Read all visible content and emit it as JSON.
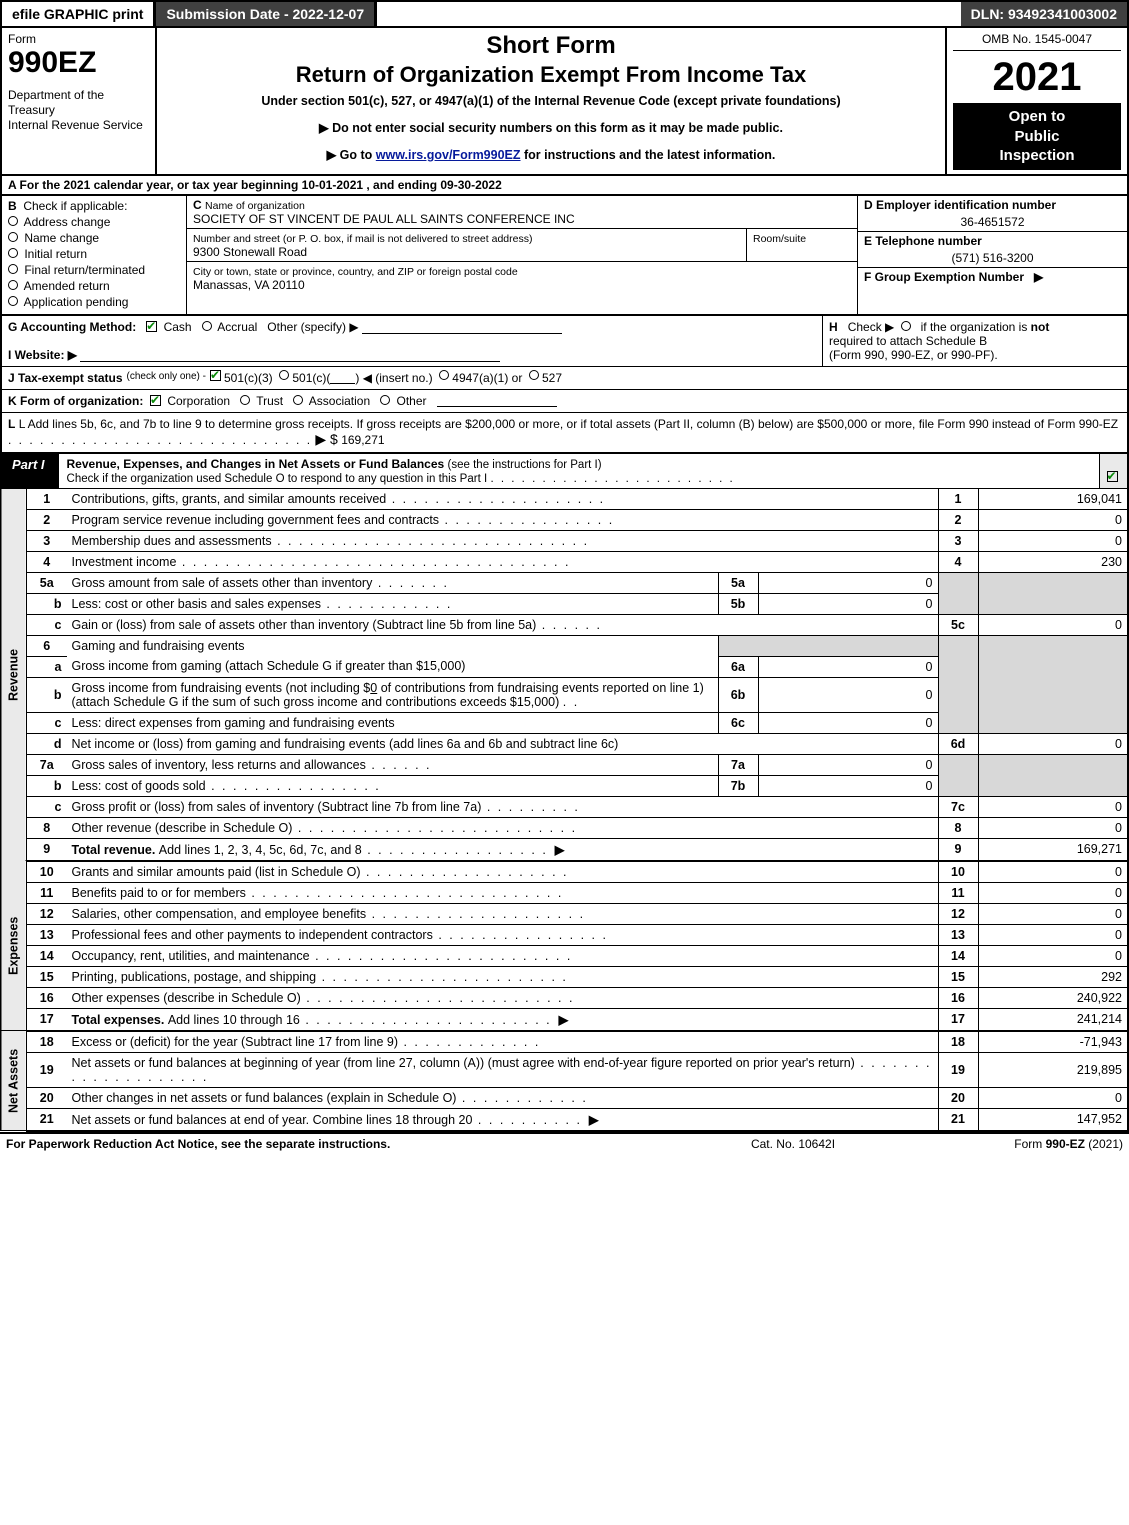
{
  "colors": {
    "dark_grey": "#404040",
    "light_grey": "#d8d8d8",
    "white": "#ffffff",
    "black": "#000000",
    "link": "#061a9b",
    "check_green": "#0a8a0a"
  },
  "top_bar": {
    "efile": "efile GRAPHIC print",
    "submission": "Submission Date - 2022-12-07",
    "dln": "DLN: 93492341003002"
  },
  "header": {
    "form_word": "Form",
    "form_no": "990EZ",
    "dept1": "Department of the Treasury",
    "dept2": "Internal Revenue Service",
    "short_form": "Short Form",
    "return_of": "Return of Organization Exempt From Income Tax",
    "under": "Under section 501(c), 527, or 4947(a)(1) of the Internal Revenue Code (except private foundations)",
    "no_ssn": "▶ Do not enter social security numbers on this form as it may be made public.",
    "goto_pre": "▶ Go to ",
    "goto_link": "www.irs.gov/Form990EZ",
    "goto_post": " for instructions and the latest information.",
    "omb": "OMB No. 1545-0047",
    "year": "2021",
    "inspect1": "Open to",
    "inspect2": "Public",
    "inspect3": "Inspection"
  },
  "row_a": "A  For the 2021 calendar year, or tax year beginning 10-01-2021 , and ending 09-30-2022",
  "section_b": {
    "heading": "B",
    "sub": "Check if applicable:",
    "items": [
      {
        "checked": false,
        "label": "Address change"
      },
      {
        "checked": false,
        "label": "Name change"
      },
      {
        "checked": false,
        "label": "Initial return"
      },
      {
        "checked": false,
        "label": "Final return/terminated"
      },
      {
        "checked": false,
        "label": "Amended return"
      },
      {
        "checked": false,
        "label": "Application pending"
      }
    ]
  },
  "section_c": {
    "c_label": "C",
    "name_label": "Name of organization",
    "name": "SOCIETY OF ST VINCENT DE PAUL ALL SAINTS CONFERENCE INC",
    "street_label": "Number and street (or P. O. box, if mail is not delivered to street address)",
    "street": "9300 Stonewall Road",
    "room_label": "Room/suite",
    "city_label": "City or town, state or province, country, and ZIP or foreign postal code",
    "city": "Manassas, VA  20110"
  },
  "section_d": {
    "label": "D Employer identification number",
    "value": "36-4651572"
  },
  "section_e": {
    "label": "E Telephone number",
    "value": "(571) 516-3200"
  },
  "section_f": {
    "label": "F Group Exemption Number",
    "arrow": "▶"
  },
  "row_g": {
    "label": "G Accounting Method:",
    "cash": "Cash",
    "accrual": "Accrual",
    "other": "Other (specify) ▶",
    "cash_checked": true
  },
  "row_h": {
    "text": "H   Check ▶      if the organization is not required to attach Schedule B (Form 990, 990-EZ, or 990-PF).",
    "h_lbl": "H",
    "check_arrow": "Check ▶",
    "if_not": "if the organization is ",
    "not_word": "not",
    "line2": "required to attach Schedule B",
    "line3": "(Form 990, 990-EZ, or 990-PF)."
  },
  "row_i": {
    "label": "I Website: ▶"
  },
  "row_j": {
    "label": "J Tax-exempt status",
    "sub": "(check only one) -",
    "opt1": "501(c)(3)",
    "opt2_pre": "501(c)(",
    "opt2_post": ") ◀ (insert no.)",
    "opt3": "4947(a)(1) or",
    "opt4": "527",
    "opt1_checked": true
  },
  "row_k": {
    "label": "K Form of organization:",
    "opts": [
      "Corporation",
      "Trust",
      "Association",
      "Other"
    ],
    "checked_idx": 0
  },
  "row_l": {
    "text": "L Add lines 5b, 6c, and 7b to line 9 to determine gross receipts. If gross receipts are $200,000 or more, or if total assets (Part II, column (B) below) are $500,000 or more, file Form 990 instead of Form 990-EZ",
    "arrow": "▶ $",
    "amount": "169,271"
  },
  "part1": {
    "tab": "Part I",
    "title": "Revenue, Expenses, and Changes in Net Assets or Fund Balances ",
    "title_sub": "(see the instructions for Part I)",
    "sub_line": "Check if the organization used Schedule O to respond to any question in this Part I",
    "schedO_checked": true
  },
  "rotated_labels": {
    "revenue": "Revenue",
    "expenses": "Expenses",
    "net_assets": "Net Assets"
  },
  "lines": {
    "l1": {
      "no": "1",
      "text": "Contributions, gifts, grants, and similar amounts received",
      "col": "1",
      "val": "169,041"
    },
    "l2": {
      "no": "2",
      "text": "Program service revenue including government fees and contracts",
      "col": "2",
      "val": "0"
    },
    "l3": {
      "no": "3",
      "text": "Membership dues and assessments",
      "col": "3",
      "val": "0"
    },
    "l4": {
      "no": "4",
      "text": "Investment income",
      "col": "4",
      "val": "230"
    },
    "l5a": {
      "no": "5a",
      "text": "Gross amount from sale of assets other than inventory",
      "subcol": "5a",
      "subval": "0"
    },
    "l5b": {
      "no": "b",
      "text": "Less: cost or other basis and sales expenses",
      "subcol": "5b",
      "subval": "0"
    },
    "l5c": {
      "no": "c",
      "text": "Gain or (loss) from sale of assets other than inventory (Subtract line 5b from line 5a)",
      "col": "5c",
      "val": "0"
    },
    "l6": {
      "no": "6",
      "text": "Gaming and fundraising events"
    },
    "l6a": {
      "no": "a",
      "text": "Gross income from gaming (attach Schedule G if greater than $15,000)",
      "subcol": "6a",
      "subval": "0"
    },
    "l6b": {
      "no": "b",
      "text_pre": "Gross income from fundraising events (not including $",
      "text_amt": "0",
      "text_mid": " of contributions from fundraising events reported on line 1) (attach Schedule G if the sum of such gross income and contributions exceeds $15,000)",
      "subcol": "6b",
      "subval": "0"
    },
    "l6c": {
      "no": "c",
      "text": "Less: direct expenses from gaming and fundraising events",
      "subcol": "6c",
      "subval": "0"
    },
    "l6d": {
      "no": "d",
      "text": "Net income or (loss) from gaming and fundraising events (add lines 6a and 6b and subtract line 6c)",
      "col": "6d",
      "val": "0"
    },
    "l7a": {
      "no": "7a",
      "text": "Gross sales of inventory, less returns and allowances",
      "subcol": "7a",
      "subval": "0"
    },
    "l7b": {
      "no": "b",
      "text": "Less: cost of goods sold",
      "subcol": "7b",
      "subval": "0"
    },
    "l7c": {
      "no": "c",
      "text": "Gross profit or (loss) from sales of inventory (Subtract line 7b from line 7a)",
      "col": "7c",
      "val": "0"
    },
    "l8": {
      "no": "8",
      "text": "Other revenue (describe in Schedule O)",
      "col": "8",
      "val": "0"
    },
    "l9": {
      "no": "9",
      "text": "Total revenue. ",
      "text2": "Add lines 1, 2, 3, 4, 5c, 6d, 7c, and 8",
      "col": "9",
      "val": "169,271"
    },
    "l10": {
      "no": "10",
      "text": "Grants and similar amounts paid (list in Schedule O)",
      "col": "10",
      "val": "0"
    },
    "l11": {
      "no": "11",
      "text": "Benefits paid to or for members",
      "col": "11",
      "val": "0"
    },
    "l12": {
      "no": "12",
      "text": "Salaries, other compensation, and employee benefits",
      "col": "12",
      "val": "0"
    },
    "l13": {
      "no": "13",
      "text": "Professional fees and other payments to independent contractors",
      "col": "13",
      "val": "0"
    },
    "l14": {
      "no": "14",
      "text": "Occupancy, rent, utilities, and maintenance",
      "col": "14",
      "val": "0"
    },
    "l15": {
      "no": "15",
      "text": "Printing, publications, postage, and shipping",
      "col": "15",
      "val": "292"
    },
    "l16": {
      "no": "16",
      "text": "Other expenses (describe in Schedule O)",
      "col": "16",
      "val": "240,922"
    },
    "l17": {
      "no": "17",
      "text": "Total expenses. ",
      "text2": "Add lines 10 through 16",
      "col": "17",
      "val": "241,214"
    },
    "l18": {
      "no": "18",
      "text": "Excess or (deficit) for the year (Subtract line 17 from line 9)",
      "col": "18",
      "val": "-71,943"
    },
    "l19": {
      "no": "19",
      "text": "Net assets or fund balances at beginning of year (from line 27, column (A)) (must agree with end-of-year figure reported on prior year's return)",
      "col": "19",
      "val": "219,895"
    },
    "l20": {
      "no": "20",
      "text": "Other changes in net assets or fund balances (explain in Schedule O)",
      "col": "20",
      "val": "0"
    },
    "l21": {
      "no": "21",
      "text": "Net assets or fund balances at end of year. Combine lines 18 through 20",
      "col": "21",
      "val": "147,952"
    }
  },
  "footer": {
    "left": "For Paperwork Reduction Act Notice, see the separate instructions.",
    "mid": "Cat. No. 10642I",
    "right_pre": "Form ",
    "right_bold": "990-EZ",
    "right_post": " (2021)"
  }
}
